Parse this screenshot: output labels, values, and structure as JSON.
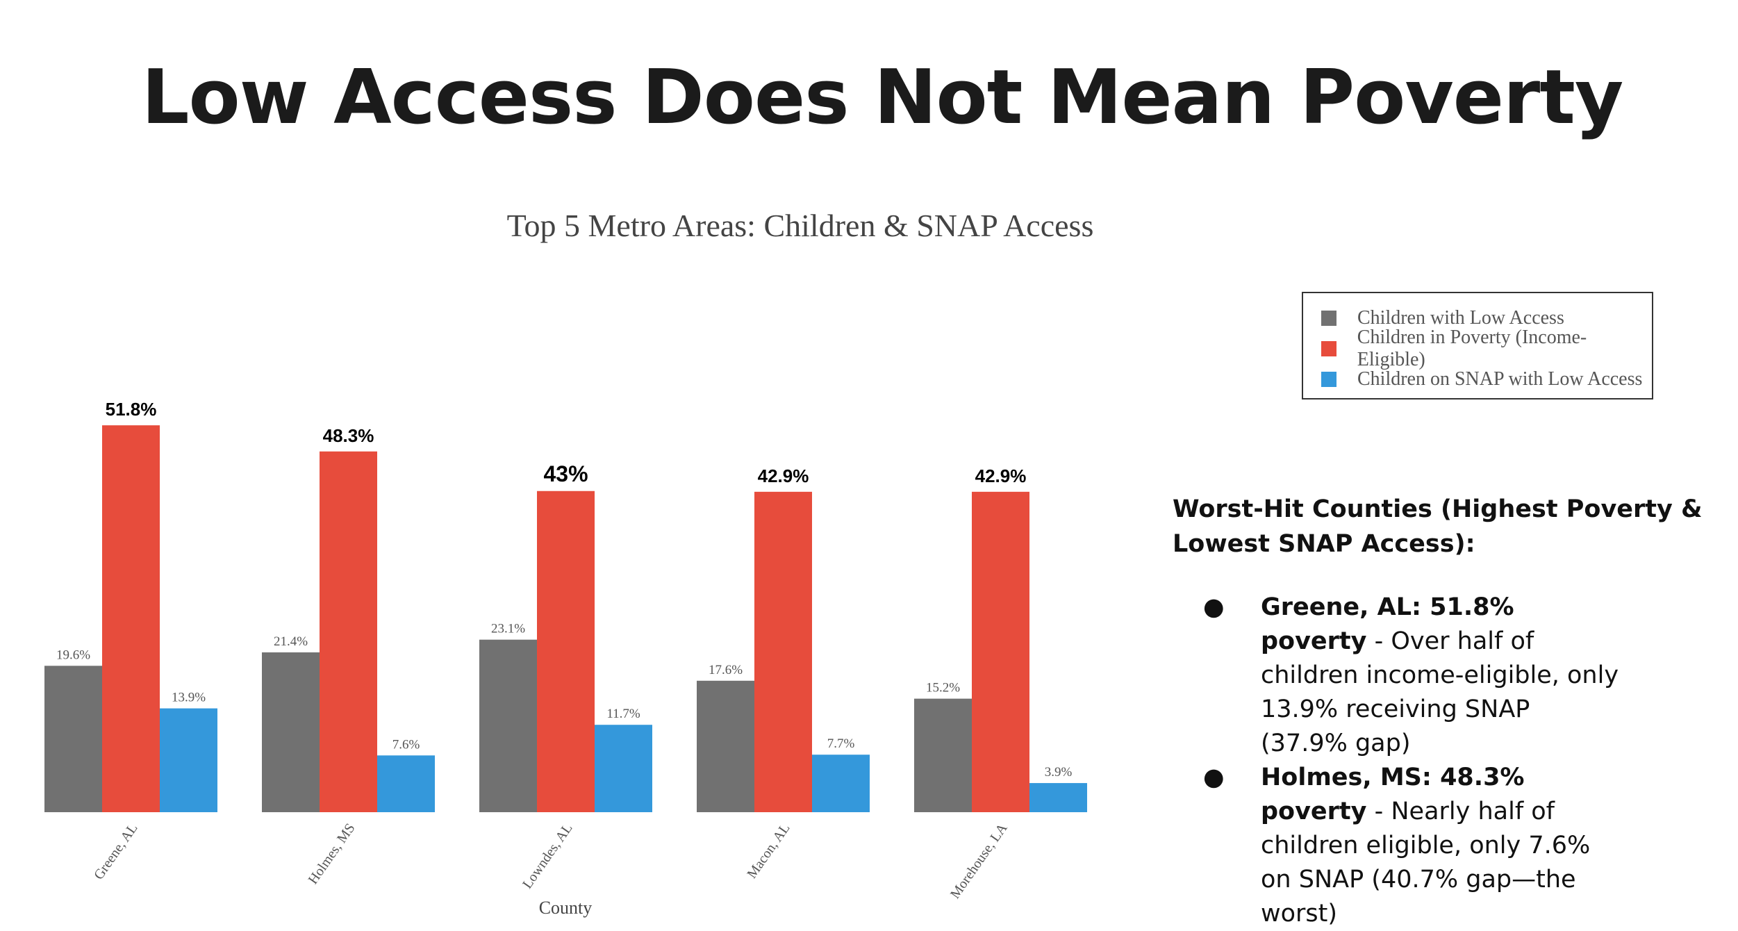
{
  "slide_title": "Low Access Does Not Mean Poverty",
  "chart_data": {
    "type": "bar",
    "title": "Top 5 Metro Areas: Children & SNAP Access",
    "xlabel": "County",
    "ylabel": "",
    "ylim": [
      0,
      55
    ],
    "grid": false,
    "legend_placement": "top-right",
    "categories": [
      "Greene, AL",
      "Holmes, MS",
      "Lowndes, AL",
      "Macon, AL",
      "Morehouse, LA"
    ],
    "series": [
      {
        "name": "Children with Low Access",
        "color": "#717171",
        "values": [
          19.6,
          21.4,
          23.1,
          17.6,
          15.2
        ],
        "labels": [
          "19.6%",
          "21.4%",
          "23.1%",
          "17.6%",
          "15.2%"
        ]
      },
      {
        "name": "Children in Poverty (Income-Eligible)",
        "color": "#e74c3c",
        "values": [
          51.8,
          48.3,
          43,
          42.9,
          42.9
        ],
        "labels": [
          "51.8%",
          "48.3%",
          "43%",
          "42.9%",
          "42.9%"
        ]
      },
      {
        "name": "Children on SNAP with Low Access",
        "color": "#3498db",
        "values": [
          13.9,
          7.6,
          11.7,
          7.7,
          3.9
        ],
        "labels": [
          "13.9%",
          "7.6%",
          "11.7%",
          "7.7%",
          "3.9%"
        ]
      }
    ]
  },
  "notes": {
    "heading": "Worst-Hit Counties (Highest Poverty & Lowest SNAP Access):",
    "bullet_char": "●",
    "items": [
      {
        "bold": "Greene, AL: 51.8% poverty",
        "text": " - Over half of children income-eligible, only 13.9% receiving SNAP (37.9% gap)"
      },
      {
        "bold": "Holmes, MS: 48.3% poverty",
        "text": " - Nearly half of children eligible, only 7.6% on SNAP (40.7% gap—the worst)"
      }
    ]
  }
}
